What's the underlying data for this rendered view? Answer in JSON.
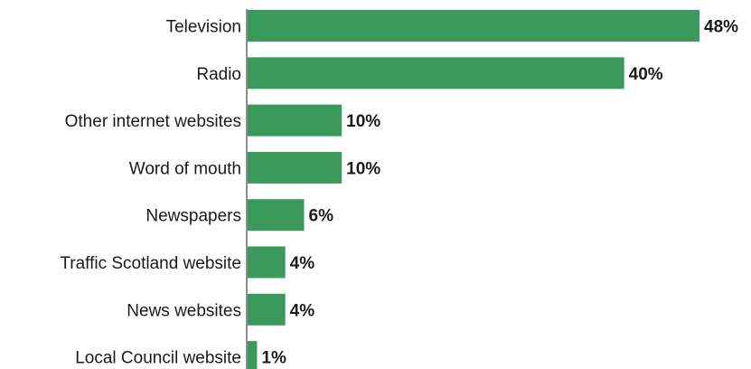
{
  "chart_data": {
    "type": "bar",
    "orientation": "horizontal",
    "categories": [
      "Television",
      "Radio",
      "Other internet websites",
      "Word of mouth",
      "Newspapers",
      "Traffic Scotland website",
      "News websites",
      "Local Council website"
    ],
    "values": [
      48,
      40,
      10,
      10,
      6,
      4,
      4,
      1
    ],
    "value_labels": [
      "48%",
      "40%",
      "10%",
      "10%",
      "6%",
      "4%",
      "4%",
      "1%"
    ],
    "title": "",
    "xlabel": "",
    "ylabel": "",
    "xlim": [
      0,
      48
    ],
    "grid": false,
    "legend": "none",
    "bar_color": "#3a9a5c",
    "text_color": "#1a1a1a"
  }
}
